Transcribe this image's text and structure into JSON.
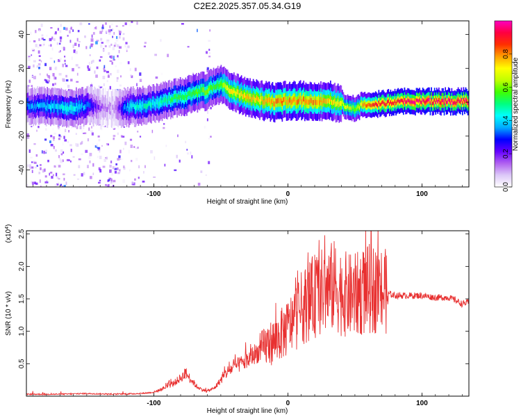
{
  "title": "C2E2.2025.357.05.34.G19",
  "chart_data": [
    {
      "type": "heatmap",
      "title": "C2E2.2025.357.05.34.G19",
      "xlabel": "Height of straight line (km)",
      "ylabel": "Frequency (Hz)",
      "xlim": [
        -195,
        135
      ],
      "ylim": [
        -50,
        48
      ],
      "xticks": [
        -100,
        0,
        100
      ],
      "xtick_labels": [
        "-100",
        "0",
        "100"
      ],
      "yticks": [
        -40,
        -20,
        0,
        20,
        40
      ],
      "ytick_labels": [
        "-40",
        "-20",
        "0",
        "20",
        "40"
      ],
      "colorbar": {
        "label": "Normalized spectral amplitude",
        "range": [
          0,
          1
        ],
        "ticks": [
          0.0,
          0.2,
          0.4,
          0.6,
          0.8
        ],
        "tick_labels": [
          "0.0",
          "0.2",
          "0.4",
          "0.6",
          "0.8"
        ],
        "colors": [
          "#ffffff",
          "#dcc8f8",
          "#b060f0",
          "#6400ff",
          "#0000ff",
          "#00aaff",
          "#00ffff",
          "#00ff80",
          "#40ff00",
          "#c0ff00",
          "#ffff00",
          "#ffa000",
          "#ff3000",
          "#ff0040",
          "#ff00c0"
        ]
      },
      "ridge": {
        "x": [
          -195,
          -175,
          -160,
          -150,
          -140,
          -130,
          -120,
          -110,
          -100,
          -90,
          -80,
          -70,
          -60,
          -55,
          -50,
          -45,
          -40,
          -30,
          -20,
          -10,
          0,
          10,
          20,
          30,
          40,
          45,
          50,
          55,
          60,
          70,
          80,
          90,
          100,
          110,
          120,
          135
        ],
        "y": [
          -2,
          -3,
          -3,
          -2,
          -3,
          -4,
          -3,
          -2,
          -1,
          1,
          3,
          5,
          7,
          9,
          10,
          8,
          6,
          3,
          1,
          0,
          1,
          1,
          0,
          1,
          -1,
          -3,
          -4,
          -1,
          -1,
          -1,
          0,
          0.5,
          0.5,
          0.5,
          0.5,
          0.5
        ],
        "amplitude": [
          0.35,
          0.4,
          0.45,
          0.35,
          0.15,
          0.1,
          0.4,
          0.45,
          0.45,
          0.5,
          0.55,
          0.55,
          0.6,
          0.55,
          0.6,
          0.7,
          0.7,
          0.75,
          0.75,
          0.8,
          0.8,
          0.8,
          0.8,
          0.75,
          0.7,
          0.65,
          0.6,
          0.75,
          0.85,
          0.9,
          0.9,
          0.95,
          0.95,
          0.95,
          0.95,
          0.95
        ]
      }
    },
    {
      "type": "line",
      "xlabel": "Height of straight line (km)",
      "ylabel": "SNR (10 * v/v)",
      "y_multiplier": "(x10^4)",
      "xlim": [
        -195,
        135
      ],
      "ylim": [
        0,
        2.55
      ],
      "xticks": [
        -100,
        0,
        100
      ],
      "xtick_labels": [
        "-100",
        "0",
        "100"
      ],
      "yticks": [
        0.5,
        1.0,
        1.5,
        2.0,
        2.5
      ],
      "ytick_labels": [
        "0.5",
        "1.0",
        "1.5",
        "2.0",
        "2.5"
      ],
      "color": "#e83030",
      "series": [
        {
          "name": "SNR",
          "x": [
            -195,
            -170,
            -150,
            -130,
            -110,
            -100,
            -95,
            -90,
            -85,
            -80,
            -76,
            -72,
            -68,
            -64,
            -60,
            -55,
            -50,
            -45,
            -40,
            -35,
            -30,
            -25,
            -20,
            -15,
            -10,
            -5,
            0,
            5,
            10,
            15,
            20,
            25,
            30,
            35,
            40,
            45,
            50,
            55,
            60,
            65,
            70,
            75,
            80,
            90,
            100,
            110,
            120,
            125,
            130,
            135
          ],
          "y": [
            0.03,
            0.03,
            0.04,
            0.03,
            0.04,
            0.06,
            0.1,
            0.15,
            0.2,
            0.28,
            0.35,
            0.25,
            0.15,
            0.1,
            0.08,
            0.12,
            0.25,
            0.38,
            0.45,
            0.5,
            0.55,
            0.65,
            0.7,
            0.8,
            0.85,
            0.95,
            1.05,
            1.2,
            1.35,
            1.45,
            1.55,
            1.6,
            1.65,
            1.7,
            1.6,
            1.55,
            1.55,
            1.6,
            1.65,
            1.65,
            1.62,
            1.58,
            1.55,
            1.55,
            1.55,
            1.52,
            1.52,
            1.48,
            1.42,
            1.45
          ]
        }
      ]
    }
  ]
}
